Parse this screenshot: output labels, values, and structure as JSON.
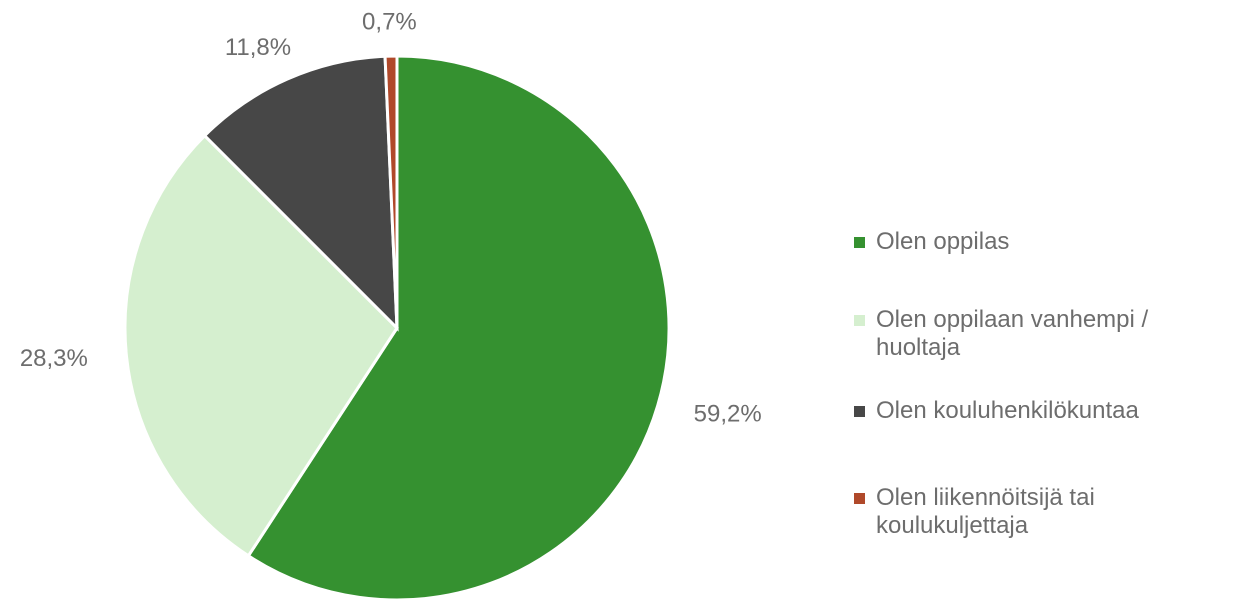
{
  "chart_data": {
    "type": "pie",
    "categories": [
      "Olen oppilas",
      "Olen oppilaan vanhempi / huoltaja",
      "Olen kouluhenkilökuntaa",
      "Olen liikennöitsijä tai koulukuljettaja"
    ],
    "values": [
      59.2,
      28.3,
      11.8,
      0.7
    ],
    "value_labels": [
      "59,2%",
      "28,3%",
      "11,8%",
      "0,7%"
    ],
    "colors": [
      "#359130",
      "#d5efcf",
      "#474747",
      "#b0492a"
    ],
    "legend": "right"
  }
}
